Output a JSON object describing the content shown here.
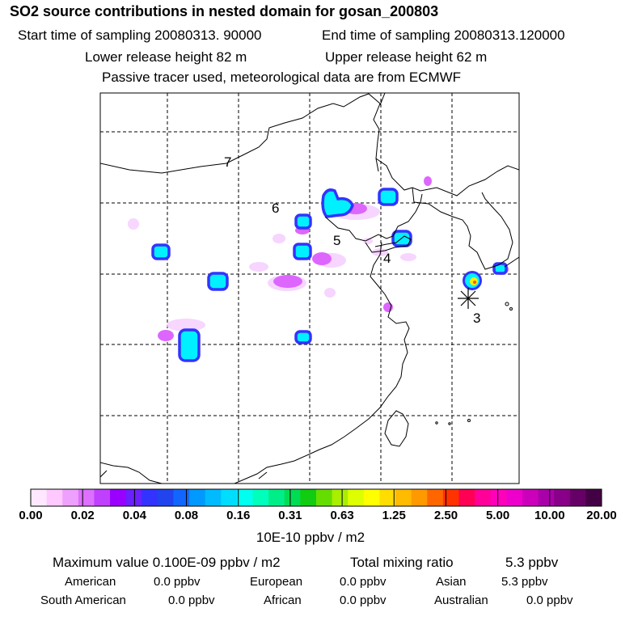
{
  "header": {
    "title": "SO2 source contributions in nested domain for gosan_200803",
    "start": "Start time of sampling 20080313. 90000",
    "end": "End time of sampling 20080313.120000",
    "lower": "Lower release height   82 m",
    "upper": "Upper release height   62 m",
    "note": "Passive tracer used, meteorological data are from ECMWF"
  },
  "map": {
    "labels": [
      {
        "id": "7",
        "text": "7"
      },
      {
        "id": "6",
        "text": "6"
      },
      {
        "id": "5",
        "text": "5"
      },
      {
        "id": "4",
        "text": "4"
      },
      {
        "id": "3",
        "text": "3"
      }
    ],
    "receptor": "Gosan receptor"
  },
  "legend": {
    "ticks": [
      "0.00",
      "0.02",
      "0.04",
      "0.08",
      "0.16",
      "0.31",
      "0.63",
      "1.25",
      "2.50",
      "5.00",
      "10.00",
      "20.00"
    ],
    "colors": [
      "#ffe8ff",
      "#ffc8ff",
      "#eea0ff",
      "#dd70ff",
      "#c040ff",
      "#9900ff",
      "#6a20ff",
      "#3333ff",
      "#2244ee",
      "#1166ff",
      "#0099ff",
      "#00bbff",
      "#00ddff",
      "#00ffee",
      "#00ffbb",
      "#00ee88",
      "#00dd55",
      "#11cc11",
      "#66dd00",
      "#aaee00",
      "#ddff00",
      "#ffff00",
      "#ffdd00",
      "#ffbb00",
      "#ff9900",
      "#ff6600",
      "#ff3300",
      "#ff0055",
      "#ff0099",
      "#ff00bb",
      "#ee00cc",
      "#cc00bb",
      "#aa00aa",
      "#880088",
      "#660066",
      "#440044"
    ],
    "unit": "10E-10 ppbv / m2"
  },
  "summary": {
    "max_label": "Maximum value  0.100E-09 ppbv / m2",
    "total_label": "Total mixing ratio",
    "total_value": "5.3 ppbv",
    "regions": [
      {
        "name": "American",
        "value": "0.0 ppbv"
      },
      {
        "name": "European",
        "value": "0.0 ppbv"
      },
      {
        "name": "Asian",
        "value": "5.3 ppbv"
      },
      {
        "name": "South American",
        "value": "0.0 ppbv"
      },
      {
        "name": "African",
        "value": "0.0 ppbv"
      },
      {
        "name": "Australian",
        "value": "0.0 ppbv"
      }
    ]
  }
}
